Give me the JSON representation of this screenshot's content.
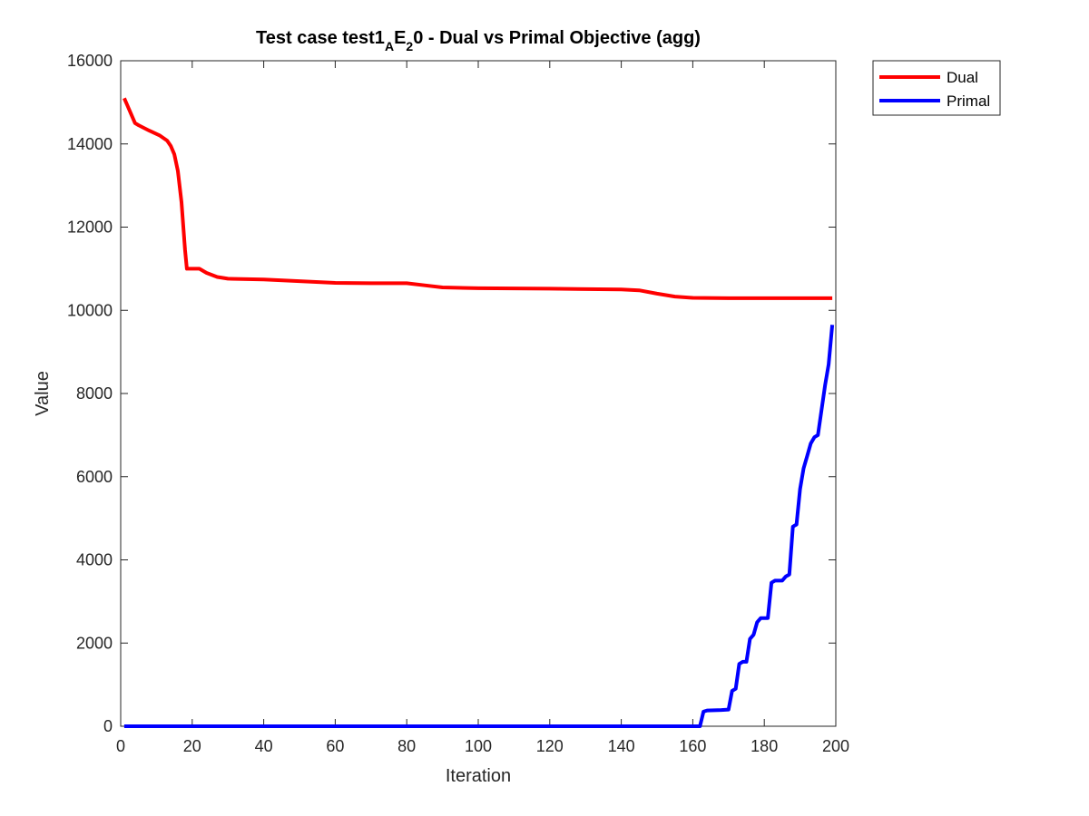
{
  "chart_data": {
    "type": "line",
    "title": {
      "prefix": "Test case test1",
      "sub1": "A",
      "mid": "E",
      "sub2": "2",
      "suffix": "0 - Dual vs Primal Objective (agg)"
    },
    "xlabel": "Iteration",
    "ylabel": "Value",
    "xlim": [
      0,
      200
    ],
    "ylim": [
      0,
      16000
    ],
    "xticks": [
      0,
      20,
      40,
      60,
      80,
      100,
      120,
      140,
      160,
      180,
      200
    ],
    "yticks": [
      0,
      2000,
      4000,
      6000,
      8000,
      10000,
      12000,
      14000,
      16000
    ],
    "grid": false,
    "legend_position": "outside-top-right",
    "series": [
      {
        "name": "Dual",
        "color": "#ff0000",
        "x": [
          1,
          2,
          3,
          4,
          5,
          8,
          11,
          13,
          14,
          15,
          16,
          17,
          18,
          18.5,
          19,
          20,
          21,
          22,
          24,
          27,
          30,
          40,
          50,
          60,
          70,
          80,
          85,
          90,
          100,
          120,
          140,
          145,
          150,
          155,
          160,
          170,
          180,
          190,
          199
        ],
        "y": [
          15100,
          14900,
          14700,
          14500,
          14450,
          14320,
          14200,
          14080,
          13950,
          13750,
          13350,
          12600,
          11450,
          11000,
          11000,
          11000,
          11000,
          11000,
          10900,
          10800,
          10760,
          10740,
          10700,
          10660,
          10650,
          10650,
          10600,
          10550,
          10530,
          10520,
          10500,
          10480,
          10400,
          10330,
          10300,
          10290,
          10290,
          10290,
          10290
        ]
      },
      {
        "name": "Primal",
        "color": "#0000ff",
        "x": [
          1,
          160,
          162,
          163,
          164,
          168,
          170,
          171,
          172,
          173,
          174,
          175,
          176,
          177,
          178,
          179,
          180,
          181,
          182,
          183,
          185,
          186,
          187,
          188,
          189,
          190,
          191,
          192,
          193,
          194,
          195,
          197,
          198,
          199
        ],
        "y": [
          0,
          0,
          0,
          350,
          380,
          390,
          400,
          850,
          900,
          1500,
          1550,
          1550,
          2100,
          2200,
          2500,
          2600,
          2600,
          2600,
          3450,
          3500,
          3500,
          3600,
          3650,
          4800,
          4850,
          5700,
          6200,
          6500,
          6800,
          6950,
          7000,
          8200,
          8700,
          9650
        ]
      }
    ]
  }
}
